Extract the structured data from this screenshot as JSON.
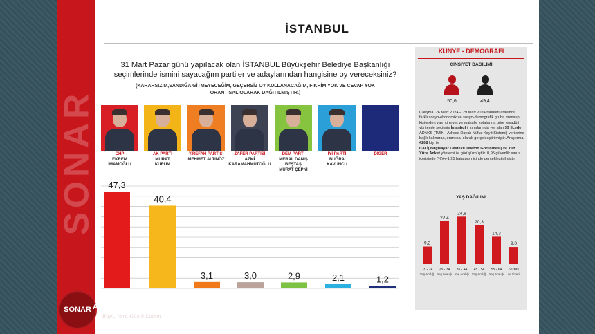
{
  "title": "İSTANBUL",
  "question": {
    "line1": "31 Mart Pazar günü yapılacak olan İSTANBUL Büyükşehir Belediye Başkanlığı",
    "line2": "seçimlerinde ismini sayacağım partiler ve adaylarından hangisine oy vereceksiniz?",
    "note1": "(KARARSIZIM,SANDIĞA GİTMEYECEĞİM, GEÇERSİZ OY KULLANACAĞIM, FİKRİM YOK VE CEVAP YOK",
    "note2": "ORANTISAL OLARAK DAĞITILMIŞTIR.)"
  },
  "watermark": "SONAR",
  "candidates": [
    {
      "party": "CHP",
      "name1": "EKREM",
      "name2": "İMAMOĞLU",
      "color": "#e41b1b",
      "photo_bg": "#d91f26"
    },
    {
      "party": "AK PARTİ",
      "name1": "MURAT",
      "name2": "KURUM",
      "color": "#f6b71c",
      "photo_bg": "#f2b416"
    },
    {
      "party": "Y.REFAH PARTİSİ",
      "name1": "MEHMET ALTINÖZ",
      "name2": "",
      "color": "#f07a1a",
      "photo_bg": "#ef7d22"
    },
    {
      "party": "ZAFER PARTİSİ",
      "name1": "AZMİ",
      "name2": "KARAMAHMUTOĞLU",
      "color": "#b9a39a",
      "photo_bg": "#3d4353"
    },
    {
      "party": "DEM PARTİ",
      "name1": "MERAL DANIŞ",
      "name2": "BEŞTAŞ",
      "name3": "MURAT ÇEPNİ",
      "color": "#7dc242",
      "photo_bg": "#86c440"
    },
    {
      "party": "İYİ PARTİ",
      "name1": "BUĞRA",
      "name2": "KAVUNCU",
      "color": "#2bb0e0",
      "photo_bg": "#2a9fd8"
    },
    {
      "party": "DİĞER",
      "name1": "",
      "name2": "",
      "color": "#1f2f7a",
      "photo_bg": "#1d2a7a"
    }
  ],
  "chart_data": {
    "type": "bar",
    "categories": [
      "CHP",
      "AK PARTİ",
      "Y.REFAH PARTİSİ",
      "ZAFER PARTİSİ",
      "DEM PARTİ",
      "İYİ PARTİ",
      "DİĞER"
    ],
    "values": [
      47.3,
      40.4,
      3.1,
      3.0,
      2.9,
      2.1,
      1.2
    ],
    "value_labels": [
      "47,3",
      "40,4",
      "3,1",
      "3,0",
      "2,9",
      "2,1",
      "1,2"
    ],
    "colors": [
      "#e41b1b",
      "#f6b71c",
      "#f07a1a",
      "#b9a39a",
      "#7dc242",
      "#2bb0e0",
      "#1f2f7a"
    ],
    "ylim": [
      0,
      50
    ],
    "grid": true
  },
  "kunye": {
    "title": "KÜNYE - DEMOGRAFİ",
    "gender_title": "CİNSİYET DAĞILIMI",
    "female": "50,6",
    "male": "49,4",
    "desc_plain1": "Çalışma, 26 Mart 2024 – 29 Mart 2024 tarihleri arasında farklı sosyo-ekonomik ve sosyo-demografik gruba mensup kişilerden yaş, cinsiyet ve mahalle kotalarına göre tesadüfi yöntemle seçilmiş ",
    "desc_bold1": "İstanbul",
    "desc_plain2": " il sınırlarında yer alan ",
    "desc_bold2": "39 ilçede",
    "desc_plain3": " ADNKS (TÜİK - Adrese Dayalı Nüfus Kayıt Sistemi) verilerine bağlı kalınarak, orantısal olarak gerçekleştirilmiştir. Araştırma ",
    "desc_bold3": "4288",
    "desc_plain4": " kişi ile",
    "desc_bold4": "CATİ( Bilgisayar Destekli Telefon Görüşmesi)",
    "desc_plain5": " ve ",
    "desc_bold5": "Yüz Yüze Anket",
    "desc_plain6": " yöntemi ile görüşülmüştür. 0,95 güvenlik sınırı içerisinde (%)+/-1,95 hata payı içinde gerçekleştirilmiştir.",
    "age_title": "YAŞ DAĞILIMI"
  },
  "age_chart": {
    "type": "bar",
    "categories": [
      "18 - 24",
      "25 - 34",
      "35 - 44",
      "45 - 54",
      "55 - 64",
      "65 Yaş"
    ],
    "sublabels": [
      "Yaş Aralığı",
      "Yaş Aralığı",
      "Yaş Aralığı",
      "Yaş Aralığı",
      "Yaş Aralığı",
      "ve Üzeri"
    ],
    "values": [
      9.2,
      22.4,
      24.8,
      20.3,
      14.3,
      9.0
    ],
    "value_labels": [
      "9,2",
      "22,4",
      "24,8",
      "20,3",
      "14,3",
      "9,0"
    ],
    "color": "#d0181f",
    "ylim": [
      0,
      26
    ]
  },
  "logo": {
    "circle_text": "SONAR",
    "name": "ARAŞTIRMA",
    "slogan": "Bilgi, Veri, Güçlü Kalem"
  },
  "colors": {
    "brand_red": "#c8161d",
    "panel_bg": "#e6e6e6"
  }
}
